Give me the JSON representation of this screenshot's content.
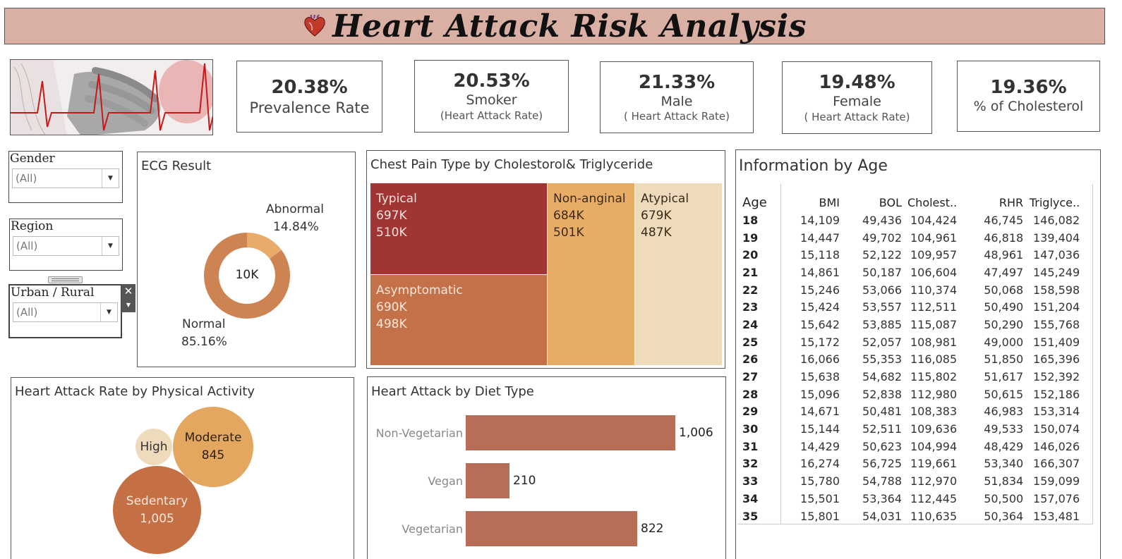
{
  "header": {
    "title": "Heart Attack Risk Analysis",
    "icon": "heart-organ-icon"
  },
  "kpis": [
    {
      "value": "20.38%",
      "label": "Prevalence Rate",
      "sub": ""
    },
    {
      "value": "20.53%",
      "label": "Smoker",
      "sub": "(Heart Attack Rate)"
    },
    {
      "value": "21.33%",
      "label": "Male",
      "sub": "( Heart Attack Rate)"
    },
    {
      "value": "19.48%",
      "label": "Female",
      "sub": "( Heart Attack Rate)"
    },
    {
      "value": "19.36%",
      "label": "% of Cholesterol",
      "sub": ""
    }
  ],
  "filters": {
    "gender": {
      "title": "Gender",
      "value": "(All)"
    },
    "region": {
      "title": "Region",
      "value": "(All)"
    },
    "urban_rural": {
      "title": "Urban / Rural",
      "value": "(All)"
    }
  },
  "ecg": {
    "title": "ECG Result",
    "center": "10K",
    "normal_label": "Normal",
    "normal_pct": "85.16%",
    "abnormal_label": "Abnormal",
    "abnormal_pct": "14.84%"
  },
  "chest_pain": {
    "title": "Chest Pain Type by Cholestorol& Triglyceride",
    "cells": [
      {
        "name": "Typical",
        "v1": "697K",
        "v2": "510K"
      },
      {
        "name": "Asymptomatic",
        "v1": "690K",
        "v2": "498K"
      },
      {
        "name": "Non-anginal",
        "v1": "684K",
        "v2": "501K"
      },
      {
        "name": "Atypical",
        "v1": "679K",
        "v2": "487K"
      }
    ]
  },
  "physical_activity": {
    "title": "Heart Attack  Rate by Physical Activity",
    "bubbles": [
      {
        "name": "High",
        "value": ""
      },
      {
        "name": "Moderate",
        "value": "845"
      },
      {
        "name": "Sedentary",
        "value": "1,005"
      }
    ]
  },
  "diet": {
    "title": "Heart Attack by Diet Type",
    "bars": [
      {
        "name": "Non-Vegetarian",
        "value": "1,006"
      },
      {
        "name": "Vegan",
        "value": "210"
      },
      {
        "name": "Vegetarian",
        "value": "822"
      }
    ]
  },
  "age_table": {
    "title": "Information by Age",
    "columns": [
      "Age",
      "BMI",
      "BOL",
      "Cholest..",
      "RHR",
      "Triglyce.."
    ],
    "rows": [
      [
        "18",
        "14,109",
        "49,436",
        "104,424",
        "46,745",
        "146,082"
      ],
      [
        "19",
        "14,447",
        "49,702",
        "104,961",
        "46,818",
        "139,404"
      ],
      [
        "20",
        "15,118",
        "52,122",
        "109,957",
        "48,961",
        "147,036"
      ],
      [
        "21",
        "14,861",
        "50,187",
        "106,604",
        "47,497",
        "145,249"
      ],
      [
        "22",
        "15,246",
        "53,066",
        "110,374",
        "50,068",
        "158,598"
      ],
      [
        "23",
        "15,424",
        "53,557",
        "112,511",
        "50,490",
        "151,204"
      ],
      [
        "24",
        "15,642",
        "53,885",
        "115,087",
        "50,290",
        "155,768"
      ],
      [
        "25",
        "15,172",
        "52,057",
        "108,981",
        "49,000",
        "151,409"
      ],
      [
        "26",
        "16,066",
        "55,353",
        "116,085",
        "51,850",
        "165,396"
      ],
      [
        "27",
        "15,638",
        "54,682",
        "115,802",
        "51,617",
        "152,392"
      ],
      [
        "28",
        "15,096",
        "52,838",
        "112,980",
        "50,615",
        "152,186"
      ],
      [
        "29",
        "14,671",
        "50,481",
        "108,383",
        "46,983",
        "153,314"
      ],
      [
        "30",
        "15,144",
        "52,511",
        "109,636",
        "49,533",
        "150,074"
      ],
      [
        "31",
        "14,429",
        "50,623",
        "104,994",
        "48,429",
        "146,026"
      ],
      [
        "32",
        "16,274",
        "56,725",
        "119,661",
        "53,340",
        "166,307"
      ],
      [
        "33",
        "15,780",
        "54,788",
        "112,970",
        "51,834",
        "159,099"
      ],
      [
        "34",
        "15,501",
        "53,364",
        "112,445",
        "50,500",
        "157,076"
      ],
      [
        "35",
        "15,801",
        "54,031",
        "110,635",
        "50,364",
        "153,481"
      ]
    ]
  },
  "chart_data": [
    {
      "type": "pie",
      "title": "ECG Result",
      "categories": [
        "Normal",
        "Abnormal"
      ],
      "values": [
        85.16,
        14.84
      ],
      "colors": [
        "#cd8452",
        "#e8ab6a"
      ]
    },
    {
      "type": "bar",
      "title": "Heart Attack by Diet Type",
      "categories": [
        "Non-Vegetarian",
        "Vegan",
        "Vegetarian"
      ],
      "values": [
        1006,
        210,
        822
      ],
      "color": "#b86e56"
    },
    {
      "type": "scatter",
      "title": "Heart Attack  Rate by Physical Activity",
      "categories": [
        "Sedentary",
        "Moderate"
      ],
      "values": [
        1005,
        845
      ]
    }
  ],
  "colors": {
    "typical": "#a03534",
    "asymptomatic": "#c4714a",
    "non_anginal": "#e7ad67",
    "atypical": "#eedbbb",
    "title_bg": "#d9b0a3"
  }
}
